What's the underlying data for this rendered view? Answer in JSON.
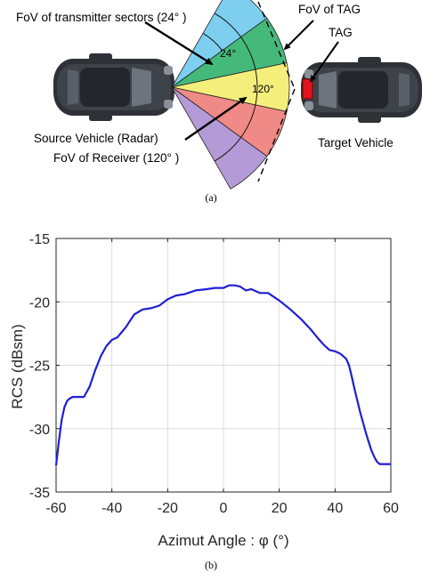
{
  "figure_a": {
    "caption": "(a)",
    "labels": {
      "fov_transmitter": "FoV of transmitter sectors (24° )",
      "fov_tag": "FoV of TAG",
      "tag": "TAG",
      "sector_angle": "24°",
      "receiver_angle": "120°",
      "source_vehicle": "Source Vehicle (Radar)",
      "fov_receiver": "FoV of Receiver (120° )",
      "target_vehicle": "Target Vehicle"
    },
    "sector_colors": [
      "#7ecef0",
      "#45b97a",
      "#f3ef7a",
      "#f08a86",
      "#b49ad6"
    ],
    "tag_color": "#e0141e"
  },
  "figure_b": {
    "caption": "(b)",
    "chart_data": {
      "type": "line",
      "title": "",
      "xlabel": "Azimut Angle : φ (°)",
      "ylabel": "RCS  (dBsm)",
      "xlim": [
        -60,
        60
      ],
      "ylim": [
        -35,
        -15
      ],
      "xticks": [
        "-60",
        "-40",
        "-20",
        "0",
        "20",
        "40",
        "60"
      ],
      "yticks": [
        "-15",
        "-20",
        "-25",
        "-30",
        "-35"
      ],
      "grid": true,
      "line_color": "#1f1fd6",
      "x": [
        -60,
        -59,
        -58,
        -57,
        -56,
        -55,
        -54,
        -52,
        -50,
        -48,
        -46,
        -44,
        -42,
        -40,
        -38,
        -35,
        -32,
        -29,
        -26,
        -23,
        -20,
        -17,
        -14,
        -10,
        -6,
        -3,
        0,
        2,
        4,
        6,
        8,
        10,
        13,
        16,
        20,
        24,
        28,
        31,
        34,
        36,
        38,
        40,
        42,
        44,
        45,
        46,
        47,
        48,
        49,
        50,
        51,
        52,
        53,
        54,
        55,
        56,
        57,
        58,
        59,
        60
      ],
      "y": [
        -32.9,
        -31.0,
        -29.3,
        -28.3,
        -27.8,
        -27.6,
        -27.5,
        -27.5,
        -27.5,
        -26.7,
        -25.4,
        -24.3,
        -23.5,
        -23.0,
        -22.8,
        -22.0,
        -21.0,
        -20.6,
        -20.5,
        -20.3,
        -19.8,
        -19.5,
        -19.4,
        -19.1,
        -19.0,
        -18.9,
        -18.9,
        -18.7,
        -18.7,
        -18.8,
        -19.1,
        -19.0,
        -19.3,
        -19.3,
        -19.9,
        -20.6,
        -21.4,
        -22.1,
        -22.9,
        -23.4,
        -23.8,
        -23.9,
        -24.1,
        -24.5,
        -25.0,
        -25.9,
        -26.9,
        -27.8,
        -28.7,
        -29.5,
        -30.3,
        -31.0,
        -31.7,
        -32.2,
        -32.6,
        -32.8,
        -32.8,
        -32.8,
        -32.8,
        -32.8
      ]
    }
  }
}
